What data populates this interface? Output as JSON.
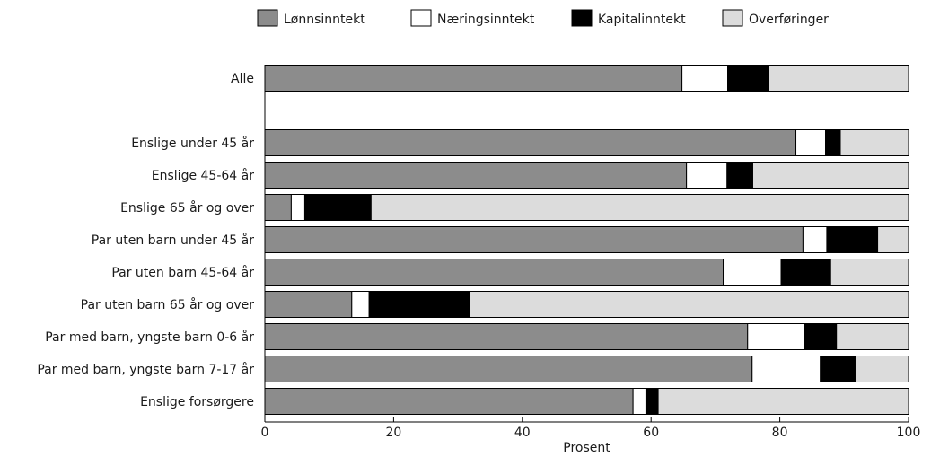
{
  "chart_data": {
    "type": "bar",
    "orientation": "horizontal",
    "stacked": true,
    "xlabel": "Prosent",
    "ylabel": "",
    "xlim": [
      0,
      100
    ],
    "xticks": [
      0,
      20,
      40,
      60,
      80,
      100
    ],
    "grid": false,
    "legend_position": "top",
    "categories": [
      "Alle",
      "",
      "Enslige under 45 år",
      "Enslige 45-64 år",
      "Enslige 65 år og over",
      "Par uten barn under 45 år",
      "Par uten barn 45-64 år",
      "Par uten barn 65 år og over",
      "Par med barn, yngste barn 0-6 år",
      "Par med barn, yngste barn 7-17 år",
      "Enslige forsørgere"
    ],
    "series": [
      {
        "name": "Lønnsinntekt",
        "color": "#8c8c8c",
        "values": [
          64.8,
          null,
          82.5,
          65.5,
          4.1,
          83.6,
          71.2,
          13.5,
          75.0,
          75.7,
          57.2
        ]
      },
      {
        "name": "Næringsinntekt",
        "color": "#ffffff",
        "values": [
          7.1,
          null,
          4.6,
          6.3,
          2.1,
          3.7,
          9.0,
          2.7,
          8.8,
          10.6,
          2.0
        ]
      },
      {
        "name": "Kapitalinntekt",
        "color": "#000000",
        "values": [
          6.4,
          null,
          2.3,
          4.0,
          10.3,
          7.9,
          7.7,
          15.6,
          5.0,
          5.4,
          1.9
        ]
      },
      {
        "name": "Overføringer",
        "color": "#dcdcdc",
        "values": [
          21.7,
          null,
          10.6,
          24.2,
          83.5,
          4.8,
          12.1,
          68.2,
          11.2,
          8.3,
          38.9
        ]
      }
    ]
  }
}
